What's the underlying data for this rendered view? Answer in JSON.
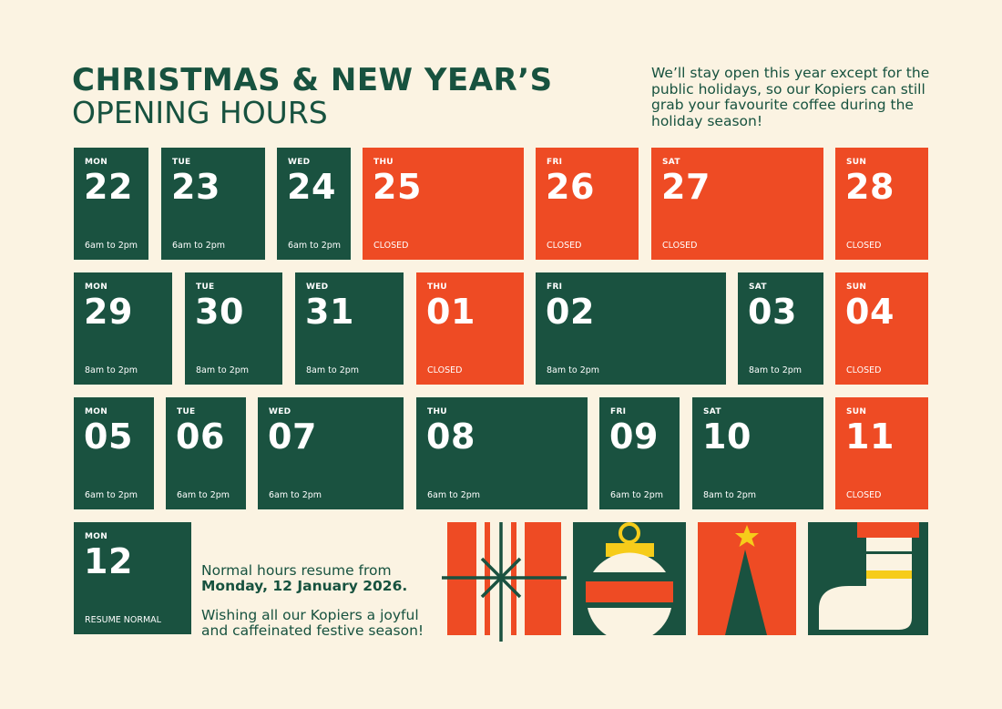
{
  "header": {
    "title_line1": "CHRISTMAS & NEW YEAR’S",
    "title_line2": "OPENING HOURS",
    "intro": "We’ll stay open this year except for the public holidays, so our Kopiers can still grab your favourite coffee during the holiday season!"
  },
  "colors": {
    "green": "#1a5240",
    "red": "#ee4b24",
    "yellow": "#f6cc1a",
    "cream": "#fbf3e2"
  },
  "days": [
    {
      "day": "MON",
      "date": "22",
      "hours": "6am to 2pm",
      "status": "open"
    },
    {
      "day": "TUE",
      "date": "23",
      "hours": "6am to 2pm",
      "status": "open"
    },
    {
      "day": "WED",
      "date": "24",
      "hours": "6am to 2pm",
      "status": "open"
    },
    {
      "day": "THU",
      "date": "25",
      "hours": "CLOSED",
      "status": "closed"
    },
    {
      "day": "FRI",
      "date": "26",
      "hours": "CLOSED",
      "status": "closed"
    },
    {
      "day": "SAT",
      "date": "27",
      "hours": "CLOSED",
      "status": "closed"
    },
    {
      "day": "SUN",
      "date": "28",
      "hours": "CLOSED",
      "status": "closed"
    },
    {
      "day": "MON",
      "date": "29",
      "hours": "8am to 2pm",
      "status": "open"
    },
    {
      "day": "TUE",
      "date": "30",
      "hours": "8am to 2pm",
      "status": "open"
    },
    {
      "day": "WED",
      "date": "31",
      "hours": "8am to 2pm",
      "status": "open"
    },
    {
      "day": "THU",
      "date": "01",
      "hours": "CLOSED",
      "status": "closed"
    },
    {
      "day": "FRI",
      "date": "02",
      "hours": "8am to 2pm",
      "status": "open"
    },
    {
      "day": "SAT",
      "date": "03",
      "hours": "8am to 2pm",
      "status": "open"
    },
    {
      "day": "SUN",
      "date": "04",
      "hours": "CLOSED",
      "status": "closed"
    },
    {
      "day": "MON",
      "date": "05",
      "hours": "6am to 2pm",
      "status": "open"
    },
    {
      "day": "TUE",
      "date": "06",
      "hours": "6am to 2pm",
      "status": "open"
    },
    {
      "day": "WED",
      "date": "07",
      "hours": "6am to 2pm",
      "status": "open"
    },
    {
      "day": "THU",
      "date": "08",
      "hours": "6am to 2pm",
      "status": "open"
    },
    {
      "day": "FRI",
      "date": "09",
      "hours": "6am to 2pm",
      "status": "open"
    },
    {
      "day": "SAT",
      "date": "10",
      "hours": "8am to 2pm",
      "status": "open"
    },
    {
      "day": "SUN",
      "date": "11",
      "hours": "CLOSED",
      "status": "closed"
    },
    {
      "day": "MON",
      "date": "12",
      "hours": "RESUME NORMAL",
      "status": "open"
    }
  ],
  "footer": {
    "resume_line1": "Normal hours resume from",
    "resume_line2": "Monday, 12 January 2026.",
    "wish": "Wishing all our Kopiers a joyful and caffeinated festive season!"
  },
  "decorations": [
    "gift-icon",
    "ornament-icon",
    "christmas-tree-icon",
    "stocking-icon"
  ]
}
